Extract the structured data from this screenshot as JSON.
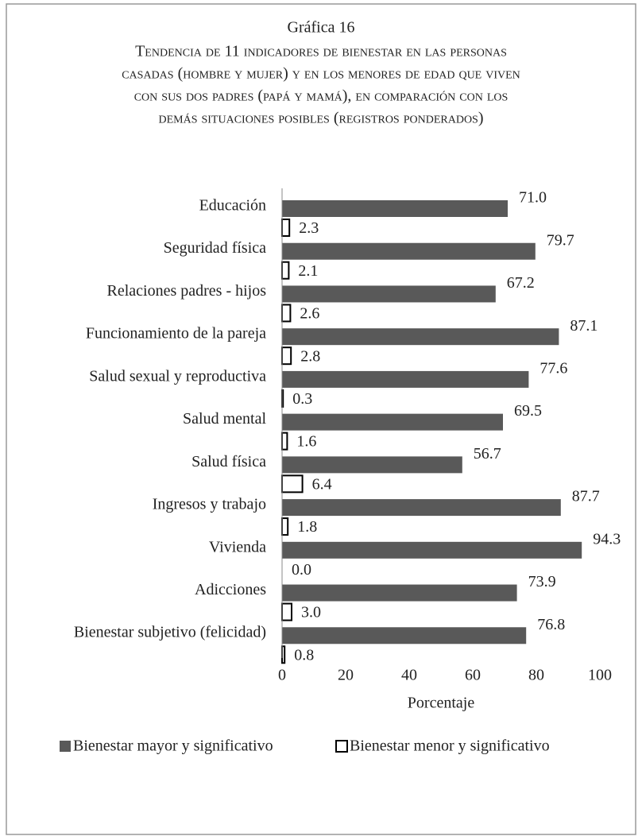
{
  "chart_data": {
    "type": "hbar",
    "title": "Gráfica 16",
    "subtitle": [
      "Tendencia de 11 indicadores de bienestar en las personas",
      "casadas (hombre y mujer) y en los menores de edad que viven",
      "con sus dos padres (papá y mamá), en comparación con los",
      "demás situaciones posibles (registros ponderados)"
    ],
    "categories": [
      "Educación",
      "Seguridad física",
      "Relaciones padres - hijos",
      "Funcionamiento de la pareja",
      "Salud sexual y reproductiva",
      "Salud mental",
      "Salud física",
      "Ingresos y trabajo",
      "Vivienda",
      "Adicciones",
      "Bienestar subjetivo (felicidad)"
    ],
    "series": [
      {
        "name": "Bienestar mayor y significativo",
        "color": "#595959",
        "values": [
          71.0,
          79.7,
          67.2,
          87.1,
          77.6,
          69.5,
          56.7,
          87.7,
          94.3,
          73.9,
          76.8
        ],
        "value_labels": [
          "71.0",
          "79.7",
          "67.2",
          "87.1",
          "77.6",
          "69.5",
          "56.7",
          "87.7",
          "94.3",
          "73.9",
          "76.8"
        ]
      },
      {
        "name": "Bienestar menor y significativo",
        "color": "#ffffff",
        "values": [
          2.3,
          2.1,
          2.6,
          2.8,
          0.3,
          1.6,
          6.4,
          1.8,
          0.0,
          3.0,
          0.8
        ],
        "value_labels": [
          "2.3",
          "2.1",
          "2.6",
          "2.8",
          "0.3",
          "1.6",
          "6.4",
          "1.8",
          "0.0",
          "3.0",
          "0.8"
        ]
      }
    ],
    "xlabel": "Porcentaje",
    "xlim": [
      0,
      100
    ],
    "xticks": [
      0,
      20,
      40,
      60,
      80,
      100
    ],
    "legend": "bottom"
  }
}
